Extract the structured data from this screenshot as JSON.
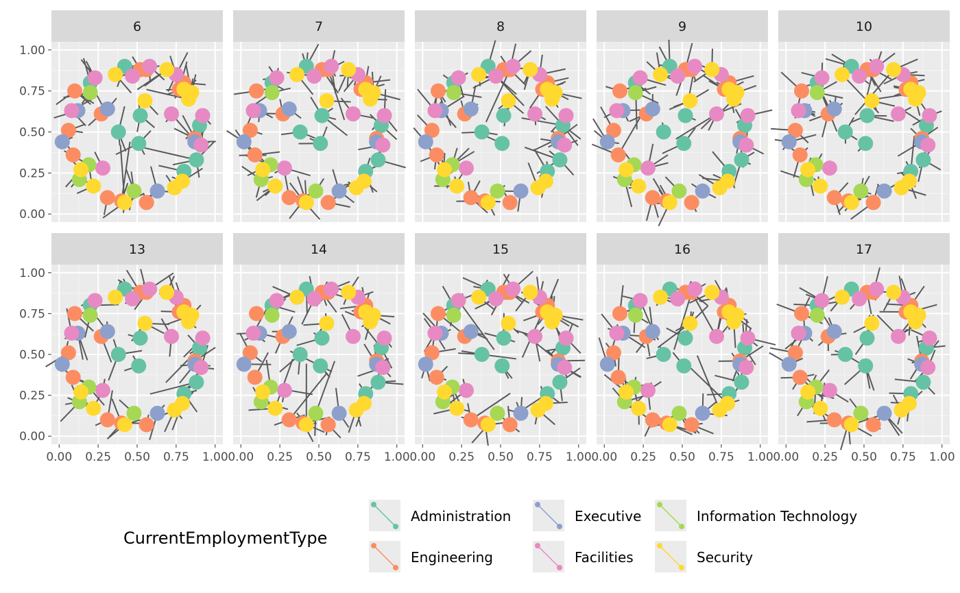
{
  "chart_data": {
    "type": "network-facets",
    "facets": [
      "6",
      "7",
      "8",
      "9",
      "10",
      "13",
      "14",
      "15",
      "16",
      "17"
    ],
    "xlim": [
      0,
      1
    ],
    "ylim": [
      0,
      1
    ],
    "x_ticks": [
      "0.00",
      "0.25",
      "0.50",
      "0.75",
      "1.00"
    ],
    "y_ticks": [
      "0.00",
      "0.25",
      "0.50",
      "0.75",
      "1.00"
    ],
    "grid": true,
    "legend": {
      "title": "CurrentEmploymentType",
      "position": "bottom",
      "entries": [
        {
          "label": "Administration",
          "color": "#66c2a5"
        },
        {
          "label": "Engineering",
          "color": "#fc8d62"
        },
        {
          "label": "Executive",
          "color": "#8da0cb"
        },
        {
          "label": "Facilities",
          "color": "#e78ac3"
        },
        {
          "label": "Information Technology",
          "color": "#a6d854"
        },
        {
          "label": "Security",
          "color": "#ffd92f"
        }
      ]
    },
    "edge_color": "#595959",
    "nodes": [
      {
        "x": 0.42,
        "y": 0.9,
        "type": "Administration"
      },
      {
        "x": 0.2,
        "y": 0.8,
        "type": "Administration"
      },
      {
        "x": 0.38,
        "y": 0.5,
        "type": "Administration"
      },
      {
        "x": 0.52,
        "y": 0.6,
        "type": "Administration"
      },
      {
        "x": 0.51,
        "y": 0.43,
        "type": "Administration"
      },
      {
        "x": 0.9,
        "y": 0.54,
        "type": "Administration"
      },
      {
        "x": 0.88,
        "y": 0.33,
        "type": "Administration"
      },
      {
        "x": 0.8,
        "y": 0.26,
        "type": "Administration"
      },
      {
        "x": 0.1,
        "y": 0.75,
        "type": "Engineering"
      },
      {
        "x": 0.27,
        "y": 0.61,
        "type": "Engineering"
      },
      {
        "x": 0.06,
        "y": 0.51,
        "type": "Engineering"
      },
      {
        "x": 0.09,
        "y": 0.36,
        "type": "Engineering"
      },
      {
        "x": 0.31,
        "y": 0.1,
        "type": "Engineering"
      },
      {
        "x": 0.4,
        "y": 0.08,
        "type": "Engineering"
      },
      {
        "x": 0.56,
        "y": 0.07,
        "type": "Engineering"
      },
      {
        "x": 0.52,
        "y": 0.88,
        "type": "Engineering"
      },
      {
        "x": 0.56,
        "y": 0.88,
        "type": "Engineering"
      },
      {
        "x": 0.8,
        "y": 0.8,
        "type": "Engineering"
      },
      {
        "x": 0.77,
        "y": 0.76,
        "type": "Engineering"
      },
      {
        "x": 0.87,
        "y": 0.46,
        "type": "Engineering"
      },
      {
        "x": 0.02,
        "y": 0.44,
        "type": "Executive"
      },
      {
        "x": 0.12,
        "y": 0.63,
        "type": "Executive"
      },
      {
        "x": 0.31,
        "y": 0.64,
        "type": "Executive"
      },
      {
        "x": 0.63,
        "y": 0.14,
        "type": "Executive"
      },
      {
        "x": 0.87,
        "y": 0.44,
        "type": "Executive"
      },
      {
        "x": 0.23,
        "y": 0.83,
        "type": "Facilities"
      },
      {
        "x": 0.08,
        "y": 0.63,
        "type": "Facilities"
      },
      {
        "x": 0.28,
        "y": 0.28,
        "type": "Facilities"
      },
      {
        "x": 0.47,
        "y": 0.84,
        "type": "Facilities"
      },
      {
        "x": 0.58,
        "y": 0.9,
        "type": "Facilities"
      },
      {
        "x": 0.75,
        "y": 0.85,
        "type": "Facilities"
      },
      {
        "x": 0.72,
        "y": 0.61,
        "type": "Facilities"
      },
      {
        "x": 0.92,
        "y": 0.6,
        "type": "Facilities"
      },
      {
        "x": 0.91,
        "y": 0.42,
        "type": "Facilities"
      },
      {
        "x": 0.2,
        "y": 0.74,
        "type": "Information Technology"
      },
      {
        "x": 0.19,
        "y": 0.3,
        "type": "Information Technology"
      },
      {
        "x": 0.13,
        "y": 0.21,
        "type": "Information Technology"
      },
      {
        "x": 0.48,
        "y": 0.14,
        "type": "Information Technology"
      },
      {
        "x": 0.36,
        "y": 0.85,
        "type": "Security"
      },
      {
        "x": 0.55,
        "y": 0.69,
        "type": "Security"
      },
      {
        "x": 0.14,
        "y": 0.27,
        "type": "Security"
      },
      {
        "x": 0.22,
        "y": 0.17,
        "type": "Security"
      },
      {
        "x": 0.42,
        "y": 0.07,
        "type": "Security"
      },
      {
        "x": 0.69,
        "y": 0.88,
        "type": "Security"
      },
      {
        "x": 0.8,
        "y": 0.76,
        "type": "Security"
      },
      {
        "x": 0.85,
        "y": 0.74,
        "type": "Security"
      },
      {
        "x": 0.83,
        "y": 0.7,
        "type": "Security"
      },
      {
        "x": 0.79,
        "y": 0.2,
        "type": "Security"
      },
      {
        "x": 0.74,
        "y": 0.16,
        "type": "Security"
      }
    ]
  }
}
